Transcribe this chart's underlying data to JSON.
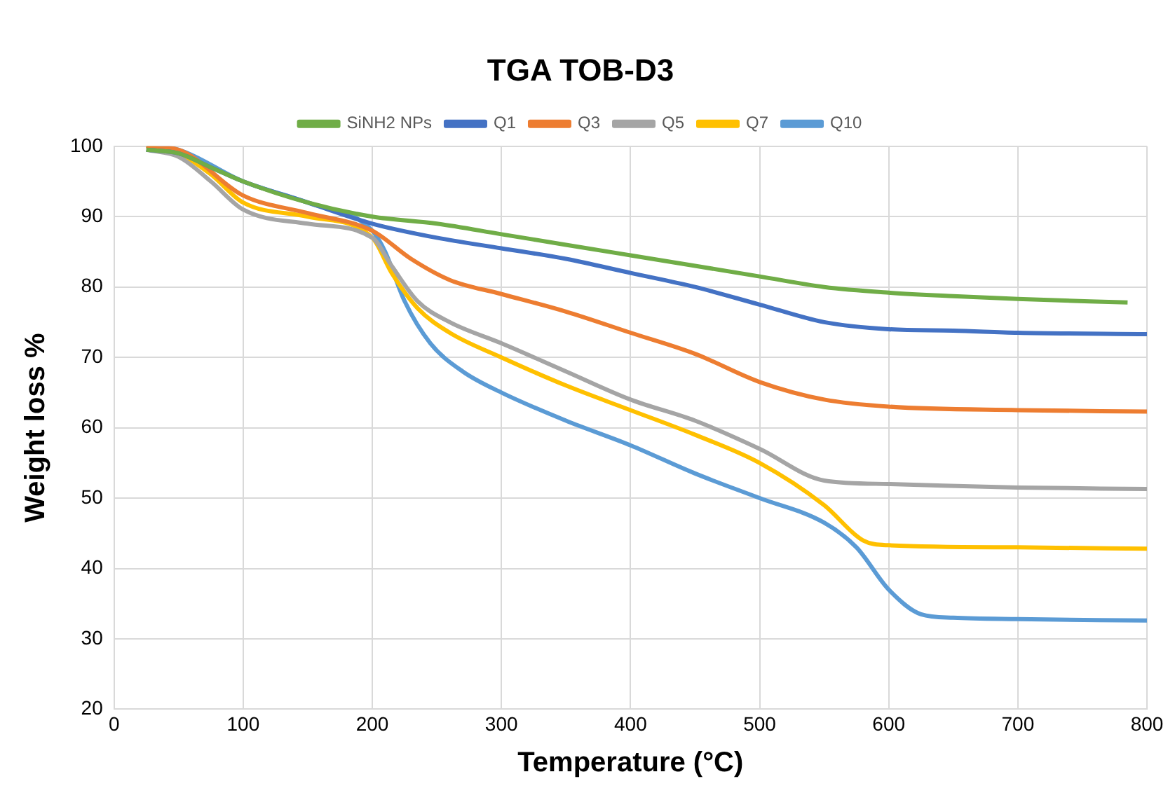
{
  "chart_data": {
    "type": "line",
    "title": "TGA TOB-D3",
    "xlabel": "Temperature (°C)",
    "ylabel": "Weight loss %",
    "xlim": [
      0,
      800
    ],
    "xticks": [
      0,
      100,
      200,
      300,
      400,
      500,
      600,
      700,
      800
    ],
    "ylim": [
      20,
      100
    ],
    "yticks": [
      20,
      30,
      40,
      50,
      60,
      70,
      80,
      90,
      100
    ],
    "grid": true,
    "legend": "top",
    "marker": "none",
    "line_style": "solid",
    "series": [
      {
        "name": "SiNH2 NPs",
        "color": "#70ad47",
        "x": [
          25,
          50,
          75,
          100,
          150,
          200,
          250,
          300,
          350,
          400,
          450,
          500,
          550,
          600,
          650,
          700,
          785
        ],
        "values": [
          99.5,
          99,
          97,
          95,
          92,
          90,
          89,
          87.5,
          86,
          84.5,
          83,
          81.5,
          80,
          79.2,
          78.7,
          78.3,
          77.8
        ]
      },
      {
        "name": "Q1",
        "color": "#4472c4",
        "x": [
          25,
          50,
          75,
          100,
          150,
          200,
          250,
          300,
          350,
          400,
          450,
          500,
          550,
          600,
          650,
          700,
          800
        ],
        "values": [
          99.5,
          99,
          97,
          95,
          92,
          89,
          87,
          85.5,
          84,
          82,
          80,
          77.5,
          75,
          74,
          73.8,
          73.5,
          73.3
        ]
      },
      {
        "name": "Q3",
        "color": "#ed7d31",
        "x": [
          25,
          50,
          100,
          150,
          200,
          230,
          260,
          300,
          350,
          400,
          450,
          500,
          550,
          600,
          700,
          800
        ],
        "values": [
          100,
          99.5,
          93,
          90.5,
          88,
          84,
          81,
          79,
          76.5,
          73.5,
          70.5,
          66.5,
          64,
          63,
          62.5,
          62.3
        ]
      },
      {
        "name": "Q5",
        "color": "#a5a5a5",
        "x": [
          25,
          50,
          75,
          100,
          150,
          200,
          215,
          235,
          260,
          300,
          350,
          400,
          450,
          500,
          550,
          600,
          700,
          800
        ],
        "values": [
          99.5,
          98.5,
          95,
          91,
          89,
          87,
          83,
          78,
          75,
          72,
          68,
          64,
          61,
          57,
          52.5,
          52,
          51.5,
          51.3
        ]
      },
      {
        "name": "Q7",
        "color": "#ffc000",
        "x": [
          25,
          50,
          75,
          100,
          150,
          200,
          215,
          235,
          260,
          300,
          350,
          400,
          450,
          500,
          550,
          580,
          600,
          700,
          800
        ],
        "values": [
          100,
          99,
          96,
          92,
          90,
          87,
          82,
          77,
          73.5,
          70,
          66,
          62.5,
          59,
          55,
          49,
          44,
          43.3,
          43,
          42.8
        ]
      },
      {
        "name": "Q10",
        "color": "#5b9bd5",
        "x": [
          25,
          50,
          100,
          150,
          200,
          210,
          225,
          245,
          270,
          300,
          350,
          400,
          450,
          500,
          550,
          575,
          600,
          625,
          650,
          700,
          800
        ],
        "values": [
          100,
          99.5,
          95,
          92,
          88,
          85,
          78,
          72,
          68,
          65,
          61,
          57.5,
          53.5,
          50,
          46.5,
          43,
          37,
          33.5,
          33,
          32.8,
          32.6
        ]
      }
    ]
  }
}
